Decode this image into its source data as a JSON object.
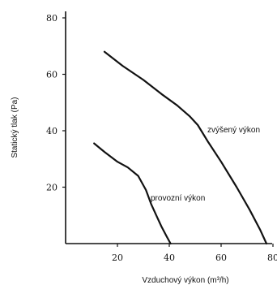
{
  "chart_data": {
    "type": "line",
    "xlabel": "Vzduchový výkon (m³/h)",
    "ylabel": "Statický tlak (Pa)",
    "xlim": [
      0,
      80
    ],
    "ylim": [
      0,
      80
    ],
    "xticks": [
      20,
      40,
      60,
      80
    ],
    "yticks": [
      20,
      40,
      60,
      80
    ],
    "grid": false,
    "series": [
      {
        "name": "zvýšený výkon",
        "x": [
          15,
          22,
          30,
          37,
          43,
          48,
          51,
          55,
          60,
          66,
          71,
          75,
          77.5
        ],
        "y": [
          68,
          63,
          58,
          53,
          49,
          45,
          42,
          36,
          29,
          20,
          12,
          5,
          0
        ]
      },
      {
        "name": "provozní výkon",
        "x": [
          11,
          15,
          20,
          24,
          28,
          31,
          33,
          35,
          37,
          39,
          40.5
        ],
        "y": [
          35.5,
          32.5,
          29,
          27,
          24,
          19,
          14,
          10,
          6,
          2.5,
          0
        ]
      }
    ],
    "annotations": [
      "zvýšený výkon",
      "provozní výkon"
    ]
  }
}
